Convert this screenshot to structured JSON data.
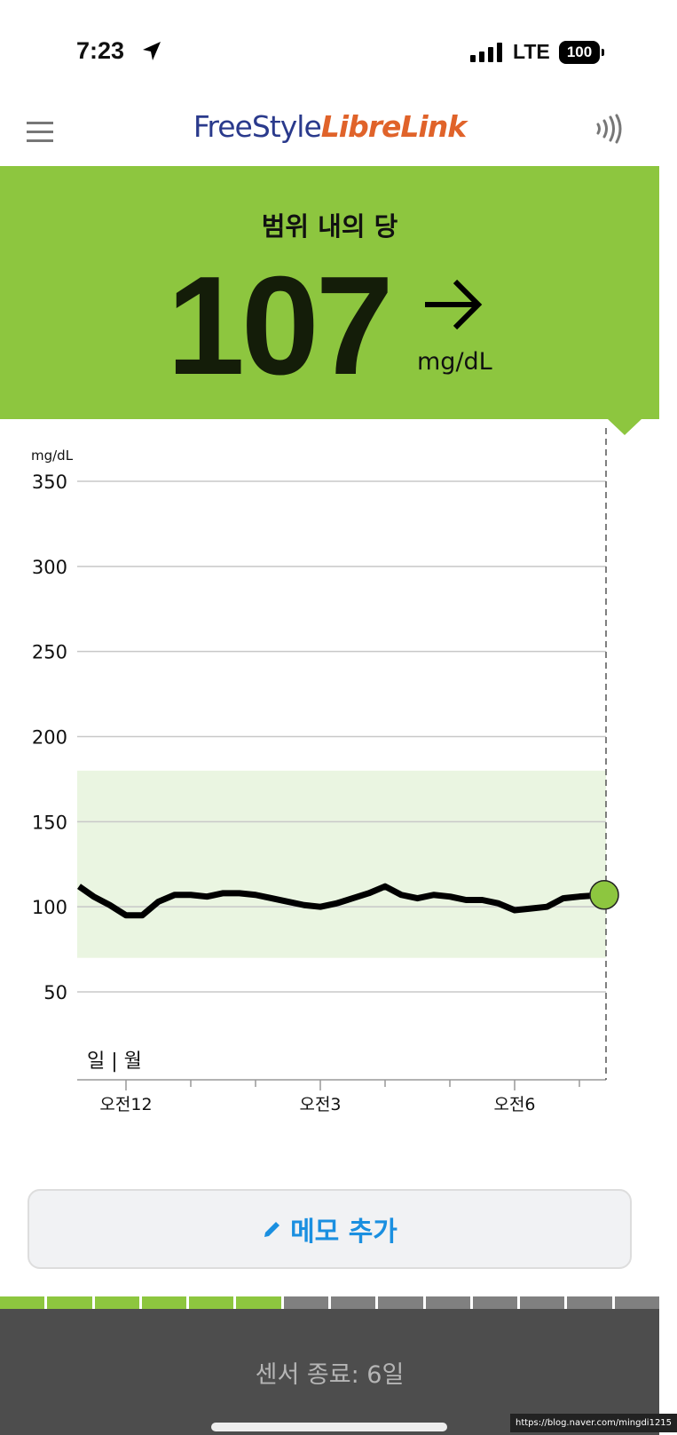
{
  "status_bar": {
    "time": "7:23",
    "network": "LTE",
    "battery": "100",
    "icons": [
      "location-arrow-icon",
      "signal-icon",
      "battery-icon"
    ]
  },
  "header": {
    "logo_part1": "FreeStyle",
    "logo_part2": "LibreLink",
    "icons": [
      "menu-icon",
      "nfc-scan-icon"
    ]
  },
  "reading": {
    "status": "범위 내의 당",
    "value": "107",
    "unit": "mg/dL",
    "trend": "arrow-right-icon",
    "color": "#8dc63f"
  },
  "chart_data": {
    "type": "line",
    "ylabel": "mg/dL",
    "ylim": [
      0,
      350
    ],
    "yticks": [
      50,
      100,
      150,
      200,
      250,
      300,
      350
    ],
    "target_range": [
      70,
      180
    ],
    "target_line": 100,
    "xticks": [
      {
        "label": "오전12",
        "time": "00:00"
      },
      {
        "label": "오전3",
        "time": "03:00"
      },
      {
        "label": "오전6",
        "time": "06:00"
      }
    ],
    "day_label": "일 | 월",
    "x": [
      "23:15",
      "23:30",
      "23:45",
      "00:00",
      "00:15",
      "00:30",
      "00:45",
      "01:00",
      "01:15",
      "01:30",
      "01:45",
      "02:00",
      "02:15",
      "02:30",
      "02:45",
      "03:00",
      "03:15",
      "03:30",
      "03:45",
      "04:00",
      "04:15",
      "04:30",
      "04:45",
      "05:00",
      "05:15",
      "05:30",
      "05:45",
      "06:00",
      "06:15",
      "06:30",
      "06:45",
      "07:00",
      "07:23"
    ],
    "values": [
      112,
      106,
      101,
      95,
      95,
      103,
      107,
      107,
      106,
      108,
      108,
      107,
      105,
      103,
      101,
      100,
      102,
      105,
      108,
      112,
      107,
      105,
      107,
      106,
      104,
      104,
      102,
      98,
      99,
      100,
      105,
      106,
      107
    ],
    "current": {
      "time": "07:23",
      "value": 107
    },
    "colors": {
      "line": "#000000",
      "range": "#eaf5e1",
      "marker": "#8dc63f"
    }
  },
  "memo": {
    "label": "메모 추가",
    "icon": "pencil-icon"
  },
  "sensor": {
    "days_total": 14,
    "days_used": 6,
    "label": "센서 종료: 6일"
  },
  "watermark": "https://blog.naver.com/mingdi1215"
}
